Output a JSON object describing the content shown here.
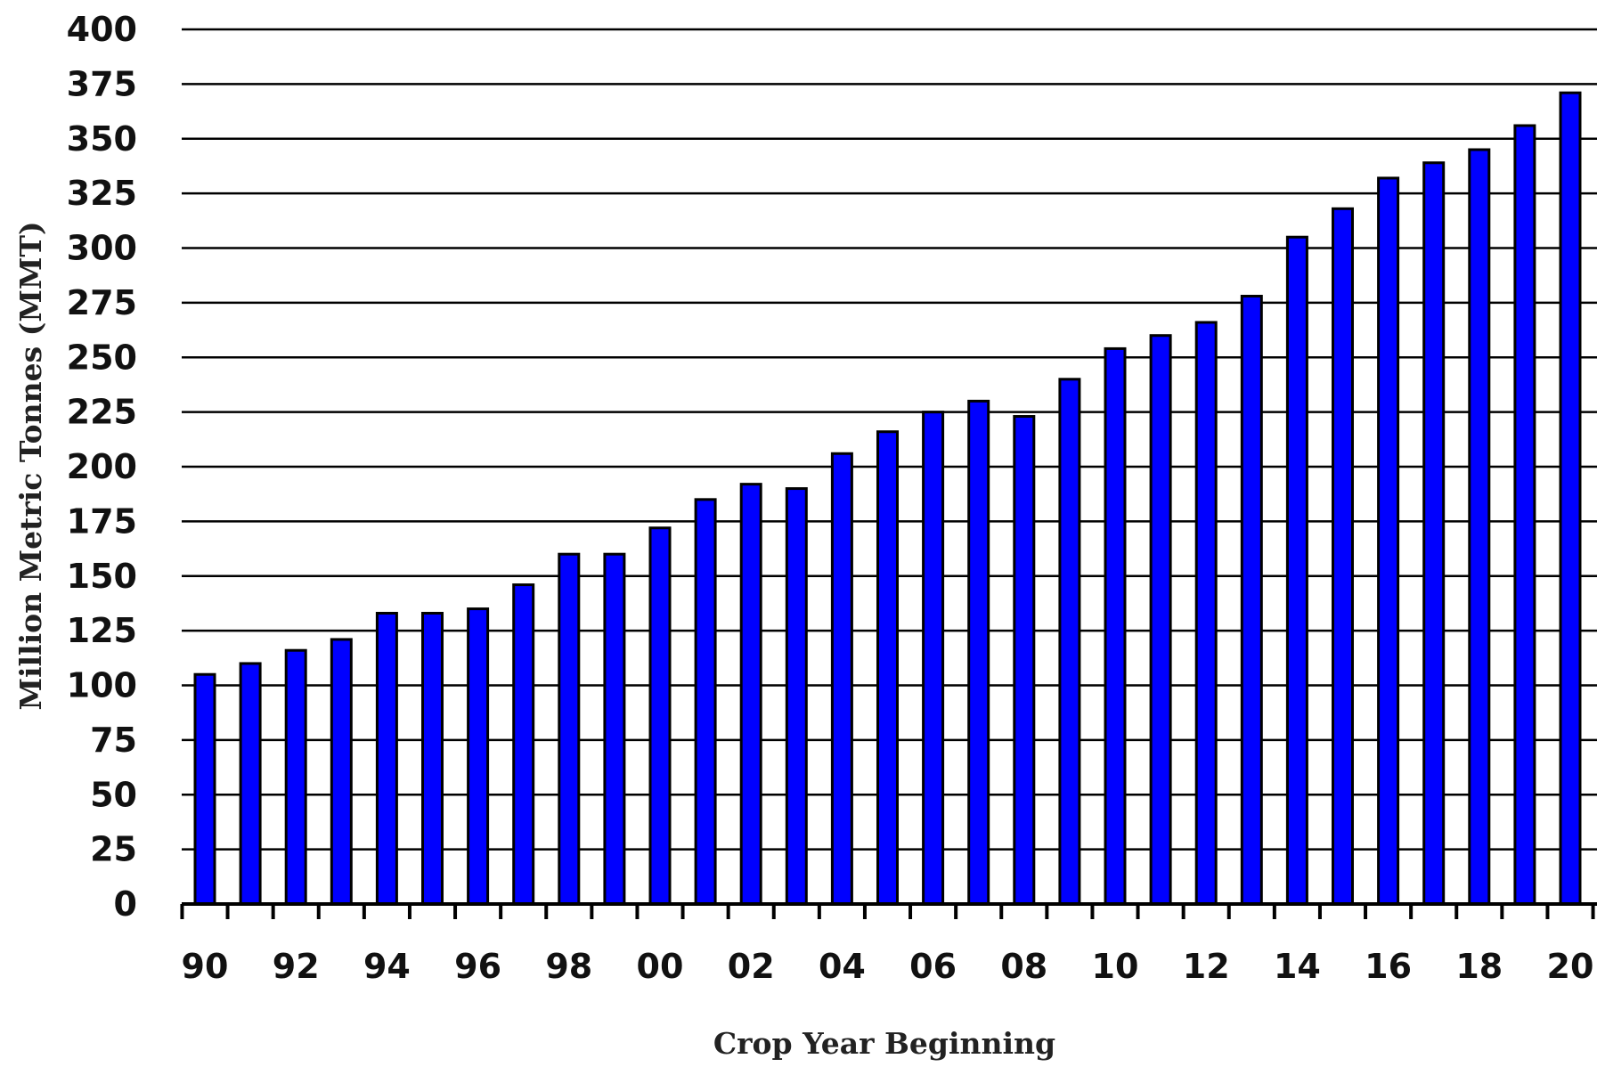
{
  "chart_data": {
    "type": "bar",
    "title": "",
    "xlabel": "Crop Year Beginning",
    "ylabel": "Million Metric Tonnes (MMT)",
    "ylim": [
      0,
      400
    ],
    "yticks": [
      0,
      25,
      50,
      75,
      100,
      125,
      150,
      175,
      200,
      225,
      250,
      275,
      300,
      325,
      350,
      375,
      400
    ],
    "categories": [
      "90",
      "91",
      "92",
      "93",
      "94",
      "95",
      "96",
      "97",
      "98",
      "99",
      "00",
      "01",
      "02",
      "03",
      "04",
      "05",
      "06",
      "07",
      "08",
      "09",
      "10",
      "11",
      "12",
      "13",
      "14",
      "15",
      "16",
      "17",
      "18",
      "19",
      "20"
    ],
    "xtick_labels": [
      "90",
      "92",
      "94",
      "96",
      "98",
      "00",
      "02",
      "04",
      "06",
      "08",
      "10",
      "12",
      "14",
      "16",
      "18",
      "20"
    ],
    "values": [
      105,
      110,
      116,
      121,
      133,
      133,
      135,
      146,
      160,
      160,
      172,
      185,
      192,
      190,
      206,
      216,
      225,
      230,
      223,
      240,
      254,
      260,
      266,
      278,
      305,
      318,
      332,
      339,
      345,
      356,
      371
    ],
    "grid": true,
    "legend": "none",
    "colors": {
      "bar_fill": "#0000ff",
      "bar_stroke": "#000000",
      "gridline": "#000000",
      "text": "#111111"
    }
  }
}
